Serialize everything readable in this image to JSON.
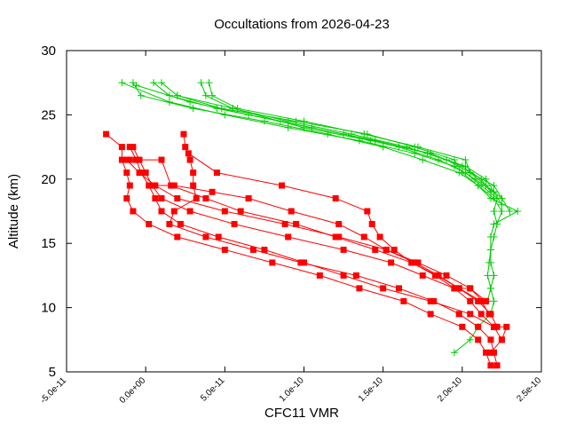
{
  "chart_data": {
    "type": "line",
    "title": "Occultations from 2026-04-23",
    "xlabel": "CFC11 VMR",
    "ylabel": "Altitude (km)",
    "xlim": [
      -5e-11,
      2.5e-10
    ],
    "ylim": [
      5,
      30
    ],
    "x_ticks": [
      -5e-11,
      0,
      5e-11,
      1e-10,
      1.5e-10,
      2e-10,
      2.5e-10
    ],
    "x_tick_labels": [
      "-5.0e-11",
      "0.0e+00",
      "5.0e-11",
      "1.0e-10",
      "1.5e-10",
      "2.0e-10",
      "2.5e-10"
    ],
    "y_ticks": [
      5,
      10,
      15,
      20,
      25,
      30
    ],
    "y_tick_labels": [
      "5",
      "10",
      "15",
      "20",
      "25",
      "30"
    ],
    "grid": false,
    "legend": "none",
    "colors": {
      "red_series": "#ff0000",
      "green_series": "#00cc00",
      "axes": "#000000",
      "background": "#ffffff"
    },
    "series": [
      {
        "color": "#ff0000",
        "marker": "square",
        "points": [
          [
            -2.5e-11,
            23.5
          ],
          [
            -1.5e-11,
            22.5
          ],
          [
            -1.5e-11,
            21.5
          ],
          [
            -1.2e-11,
            20.5
          ],
          [
            -1e-11,
            19.5
          ],
          [
            -1.2e-11,
            18.5
          ],
          [
            -8e-12,
            17.5
          ],
          [
            2e-12,
            16.5
          ],
          [
            2e-11,
            15.5
          ],
          [
            5e-11,
            14.5
          ],
          [
            8e-11,
            13.5
          ],
          [
            1.1e-10,
            12.5
          ],
          [
            1.35e-10,
            11.5
          ],
          [
            1.63e-10,
            10.5
          ],
          [
            1.8e-10,
            9.5
          ],
          [
            2e-10,
            8.5
          ],
          [
            2.1e-10,
            7.5
          ],
          [
            2.15e-10,
            6.5
          ],
          [
            2.18e-10,
            5.5
          ]
        ]
      },
      {
        "color": "#ff0000",
        "marker": "square",
        "points": [
          [
            2.4e-11,
            23.5
          ],
          [
            2.5e-11,
            22.5
          ],
          [
            2.8e-11,
            21.5
          ],
          [
            3e-11,
            20.5
          ],
          [
            3e-11,
            19.5
          ],
          [
            3.2e-11,
            18.5
          ],
          [
            1.8e-11,
            17.5
          ],
          [
            1.5e-11,
            16.5
          ],
          [
            3.8e-11,
            15.5
          ],
          [
            6.8e-11,
            14.5
          ],
          [
            9.8e-11,
            13.5
          ],
          [
            1.33e-10,
            12.5
          ],
          [
            1.6e-10,
            11.5
          ],
          [
            1.82e-10,
            10.5
          ],
          [
            1.98e-10,
            9.5
          ],
          [
            2.1e-10,
            8.5
          ],
          [
            2.18e-10,
            7.5
          ],
          [
            2.2e-10,
            6.5
          ],
          [
            2.22e-10,
            5.5
          ]
        ]
      },
      {
        "color": "#ff0000",
        "marker": "square",
        "points": [
          [
            -1e-11,
            22.5
          ],
          [
            -6e-12,
            21.5
          ],
          [
            -3e-12,
            20.5
          ],
          [
            2e-12,
            19.5
          ],
          [
            6e-12,
            18.5
          ],
          [
            1e-11,
            17.5
          ],
          [
            2.2e-11,
            16.5
          ],
          [
            4.6e-11,
            15.5
          ],
          [
            7.5e-11,
            14.5
          ],
          [
            1e-10,
            13.5
          ],
          [
            1.25e-10,
            12.5
          ],
          [
            1.5e-10,
            11.5
          ],
          [
            1.8e-10,
            10.5
          ],
          [
            2.05e-10,
            9.5
          ],
          [
            2.2e-10,
            8.5
          ],
          [
            2.25e-10,
            7.5
          ],
          [
            2.18e-10,
            6.5
          ]
        ]
      },
      {
        "color": "#ff0000",
        "marker": "square",
        "points": [
          [
            -8e-12,
            22.5
          ],
          [
            -4e-12,
            21.5
          ],
          [
            0,
            20.5
          ],
          [
            4e-12,
            19.5
          ],
          [
            1e-11,
            18.5
          ],
          [
            2.8e-11,
            17.5
          ],
          [
            5.6e-11,
            16.5
          ],
          [
            9e-11,
            15.5
          ],
          [
            1.25e-10,
            14.5
          ],
          [
            1.55e-10,
            13.5
          ],
          [
            1.75e-10,
            12.5
          ],
          [
            1.95e-10,
            11.5
          ],
          [
            2.05e-10,
            10.5
          ],
          [
            2.12e-10,
            9.5
          ],
          [
            2.2e-10,
            8.5
          ],
          [
            2.28e-10,
            8.5
          ],
          [
            2.25e-10,
            7.5
          ]
        ]
      },
      {
        "color": "#ff0000",
        "marker": "square",
        "points": [
          [
            -1.2e-11,
            21.5
          ],
          [
            -4e-12,
            20.5
          ],
          [
            6e-12,
            19.5
          ],
          [
            2e-11,
            18.5
          ],
          [
            5e-11,
            17.5
          ],
          [
            8.8e-11,
            16.5
          ],
          [
            1.22e-10,
            15.5
          ],
          [
            1.52e-10,
            14.5
          ],
          [
            1.7e-10,
            13.5
          ],
          [
            1.85e-10,
            12.5
          ],
          [
            1.98e-10,
            11.5
          ],
          [
            2.1e-10,
            10.5
          ],
          [
            2.18e-10,
            9.5
          ],
          [
            2.22e-10,
            8.5
          ]
        ]
      },
      {
        "color": "#ff0000",
        "marker": "square",
        "points": [
          [
            -1e-11,
            21.5
          ],
          [
            1e-11,
            21.5
          ],
          [
            1.6e-11,
            19.5
          ],
          [
            3.8e-11,
            18.5
          ],
          [
            6e-11,
            17.5
          ],
          [
            9.5e-11,
            16.5
          ],
          [
            1.2e-10,
            15.5
          ],
          [
            1.45e-10,
            14.5
          ],
          [
            1.68e-10,
            13.5
          ],
          [
            1.84e-10,
            12.5
          ],
          [
            1.98e-10,
            11.5
          ],
          [
            2.12e-10,
            10.5
          ],
          [
            2.17e-10,
            9.5
          ]
        ]
      },
      {
        "color": "#ff0000",
        "marker": "square",
        "points": [
          [
            5e-12,
            19.5
          ],
          [
            1.8e-11,
            19.5
          ],
          [
            4.2e-11,
            19.0
          ],
          [
            6.5e-11,
            18.5
          ],
          [
            9.2e-11,
            17.5
          ],
          [
            1.22e-10,
            16.5
          ],
          [
            1.38e-10,
            15.5
          ],
          [
            1.52e-10,
            14.5
          ],
          [
            1.72e-10,
            13.5
          ],
          [
            1.9e-10,
            12.5
          ],
          [
            2.05e-10,
            11.5
          ],
          [
            2.15e-10,
            10.5
          ]
        ]
      },
      {
        "color": "#ff0000",
        "marker": "square",
        "points": [
          [
            2.7e-11,
            22.0
          ],
          [
            4.5e-11,
            20.5
          ],
          [
            8.6e-11,
            19.5
          ],
          [
            1.2e-10,
            18.5
          ],
          [
            1.4e-10,
            17.5
          ],
          [
            1.43e-10,
            16.5
          ],
          [
            1.48e-10,
            15.5
          ],
          [
            1.57e-10,
            14.5
          ],
          [
            1.68e-10,
            13.5
          ],
          [
            1.83e-10,
            12.5
          ],
          [
            1.95e-10,
            11.5
          ],
          [
            2.05e-10,
            11.5
          ],
          [
            2.13e-10,
            10.5
          ]
        ]
      },
      {
        "color": "#00cc00",
        "marker": "plus",
        "points": [
          [
            -8e-12,
            27.5
          ],
          [
            -3e-12,
            26.5
          ],
          [
            3e-11,
            25.5
          ],
          [
            7.5e-11,
            24.5
          ],
          [
            1.15e-10,
            23.5
          ],
          [
            1.5e-10,
            22.5
          ],
          [
            1.75e-10,
            21.5
          ],
          [
            1.98e-10,
            20.5
          ],
          [
            2.1e-10,
            19.5
          ],
          [
            2.18e-10,
            18.5
          ],
          [
            2.35e-10,
            17.5
          ],
          [
            2.2e-10,
            16.5
          ],
          [
            2.18e-10,
            15.5
          ],
          [
            2.18e-10,
            14.5
          ],
          [
            2.18e-10,
            13.5
          ],
          [
            2.2e-10,
            12.5
          ],
          [
            2.18e-10,
            11.5
          ],
          [
            2.2e-10,
            10.5
          ],
          [
            2.18e-10,
            9.5
          ],
          [
            2.1e-10,
            8.5
          ],
          [
            2.05e-10,
            7.5
          ],
          [
            1.95e-10,
            6.5
          ]
        ]
      },
      {
        "color": "#00cc00",
        "marker": "plus",
        "points": [
          [
            5e-12,
            27.5
          ],
          [
            1.5e-11,
            26.5
          ],
          [
            4.5e-11,
            25.5
          ],
          [
            8.5e-11,
            24.5
          ],
          [
            1.25e-10,
            23.5
          ],
          [
            1.6e-10,
            22.5
          ],
          [
            1.85e-10,
            21.5
          ],
          [
            2.02e-10,
            20.5
          ],
          [
            2.12e-10,
            19.5
          ],
          [
            2.22e-10,
            18.5
          ],
          [
            2.2e-10,
            17.5
          ],
          [
            2.22e-10,
            16.5
          ],
          [
            2.2e-10,
            15.5
          ],
          [
            2.18e-10,
            14.5
          ],
          [
            2.17e-10,
            13.5
          ],
          [
            2.16e-10,
            12.5
          ],
          [
            2.18e-10,
            11.5
          ],
          [
            2.16e-10,
            10.5
          ]
        ]
      },
      {
        "color": "#00cc00",
        "marker": "plus",
        "points": [
          [
            3.5e-11,
            27.5
          ],
          [
            3.8e-11,
            26.5
          ],
          [
            5.5e-11,
            25.5
          ],
          [
            9e-11,
            24.5
          ],
          [
            1.3e-10,
            23.5
          ],
          [
            1.65e-10,
            22.5
          ],
          [
            1.9e-10,
            21.5
          ],
          [
            2.05e-10,
            20.5
          ],
          [
            2.15e-10,
            19.5
          ],
          [
            2.25e-10,
            18.5
          ],
          [
            2.3e-10,
            17.5
          ]
        ]
      },
      {
        "color": "#00cc00",
        "marker": "plus",
        "points": [
          [
            1e-11,
            27.5
          ],
          [
            2e-11,
            26.5
          ],
          [
            4.8e-11,
            25.5
          ],
          [
            9.5e-11,
            24.5
          ],
          [
            1.4e-10,
            23.5
          ],
          [
            1.7e-10,
            22.5
          ],
          [
            1.95e-10,
            21.5
          ],
          [
            2e-10,
            20.5
          ],
          [
            2.1e-10,
            19.5
          ],
          [
            2.2e-10,
            18.5
          ],
          [
            2.25e-10,
            17.5
          ],
          [
            2.22e-10,
            16.5
          ]
        ]
      },
      {
        "color": "#00cc00",
        "marker": "plus",
        "points": [
          [
            4e-11,
            27.5
          ],
          [
            4.2e-11,
            26.5
          ],
          [
            5.8e-11,
            25.5
          ],
          [
            1e-10,
            24.5
          ],
          [
            1.38e-10,
            23.5
          ],
          [
            1.72e-10,
            22.5
          ],
          [
            2.02e-10,
            21.5
          ],
          [
            2.05e-10,
            20.5
          ],
          [
            2.2e-10,
            19.5
          ],
          [
            2.25e-10,
            18.5
          ]
        ]
      },
      {
        "color": "#00cc00",
        "marker": "plus",
        "points": [
          [
            -1.5e-11,
            27.5
          ],
          [
            1.5e-11,
            26.0
          ],
          [
            5e-11,
            25.0
          ],
          [
            9e-11,
            24.0
          ],
          [
            1.35e-10,
            23.0
          ],
          [
            1.7e-10,
            22.0
          ],
          [
            1.95e-10,
            21.0
          ],
          [
            2.08e-10,
            20.0
          ],
          [
            2.2e-10,
            19.0
          ],
          [
            2.25e-10,
            18.0
          ]
        ]
      },
      {
        "color": "#00cc00",
        "marker": "plus",
        "points": [
          [
            -6e-12,
            27.3
          ],
          [
            2.8e-11,
            26.0
          ],
          [
            6.5e-11,
            25.0
          ],
          [
            1.05e-10,
            24.0
          ],
          [
            1.45e-10,
            23.0
          ],
          [
            1.78e-10,
            22.0
          ],
          [
            2.02e-10,
            21.0
          ],
          [
            2.15e-10,
            20.0
          ],
          [
            2.2e-10,
            19.0
          ]
        ]
      },
      {
        "color": "#00cc00",
        "marker": "plus",
        "points": [
          [
            2e-11,
            26.5
          ],
          [
            5.5e-11,
            25.5
          ],
          [
            1e-10,
            24.0
          ],
          [
            1.42e-10,
            23.0
          ],
          [
            1.8e-10,
            22.0
          ],
          [
            2e-10,
            21.0
          ],
          [
            2.12e-10,
            20.0
          ],
          [
            2.18e-10,
            19.0
          ]
        ]
      }
    ]
  }
}
